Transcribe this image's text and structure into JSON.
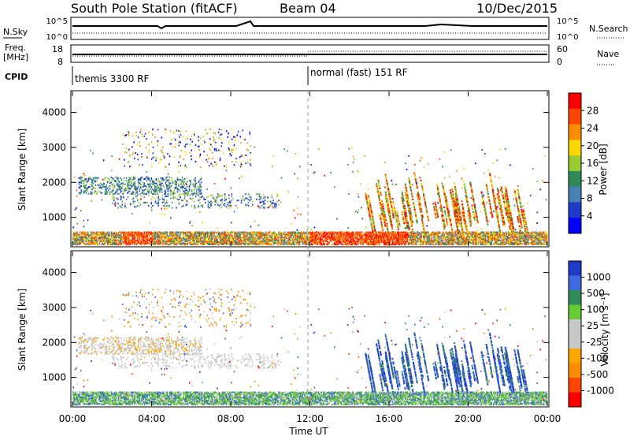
{
  "header": {
    "station": "South Pole Station (fitACF)",
    "beam": "Beam 04",
    "date": "10/Dec/2015"
  },
  "top_panels": {
    "left_labels": {
      "nsky": "N.Sky",
      "freq1": "Freq.",
      "freq2": "[MHz]",
      "cpid": "CPID"
    },
    "right_labels": {
      "nsearch": "N.Search",
      "nave": "Nave"
    },
    "nsky_ticks": [
      "10^5",
      "10^0"
    ],
    "nsearch_ticks": [
      "10^5",
      "10^0"
    ],
    "freq_ticks": [
      "18",
      "8"
    ],
    "nave_ticks": [
      "60",
      "0"
    ],
    "cpid_segments": [
      {
        "label": "themis 3300 RF",
        "start_hour": 0
      },
      {
        "label": "normal (fast) 151 RF",
        "start_hour": 12
      }
    ]
  },
  "axes": {
    "xlabel": "Time UT",
    "x_ticks": [
      "00:00",
      "04:00",
      "08:00",
      "12:00",
      "16:00",
      "20:00",
      "00:00"
    ],
    "y_ticks": [
      "1000",
      "2000",
      "3000",
      "4000"
    ],
    "ylabel": "Slant Range [km]"
  },
  "colorbars": {
    "power": {
      "title": "Power [dB]",
      "labels": [
        "28",
        "24",
        "20",
        "16",
        "12",
        "8",
        "4"
      ],
      "colors": [
        "#ff0000",
        "#ff4500",
        "#ff8c00",
        "#ffd700",
        "#9acd32",
        "#2e8b57",
        "#4682b4",
        "#1e3cc8",
        "#0000ff"
      ]
    },
    "velocity": {
      "title": "Velocity [m s⁻¹]",
      "labels": [
        "1000",
        "500",
        "100",
        "25",
        "-25",
        "-100",
        "-500",
        "-1000"
      ],
      "colors": [
        "#1e3cc8",
        "#4169e1",
        "#2e8b57",
        "#66cc33",
        "#c8c8c8",
        "#c8c8c8",
        "#ffa500",
        "#ff8c00",
        "#ff4500",
        "#ff0000"
      ]
    }
  },
  "chart_data": [
    {
      "type": "heatmap",
      "name": "power",
      "x_range_hours": [
        0,
        24
      ],
      "y_range_km": [
        180,
        4600
      ],
      "colorbar_label": "Power [dB]",
      "colorbar_range": [
        0,
        30
      ],
      "features": [
        {
          "time_hours": [
            0,
            24
          ],
          "range_km": [
            200,
            550
          ],
          "power_db": "8-28",
          "desc": "near-range echoes"
        },
        {
          "time_hours": [
            0,
            5
          ],
          "range_km": [
            1700,
            2100
          ],
          "power_db": "4-12"
        },
        {
          "time_hours": [
            12,
            17
          ],
          "range_km": [
            300,
            600
          ],
          "power_db": "20-28"
        },
        {
          "time_hours": [
            16,
            23
          ],
          "range_km": [
            500,
            1800
          ],
          "power_db": "12-28"
        }
      ]
    },
    {
      "type": "heatmap",
      "name": "velocity",
      "x_range_hours": [
        0,
        24
      ],
      "y_range_km": [
        180,
        4600
      ],
      "colorbar_label": "Velocity [m s-1]",
      "colorbar_range": [
        -1000,
        1000
      ],
      "features": [
        {
          "time_hours": [
            0,
            24
          ],
          "range_km": [
            200,
            450
          ],
          "velocity": "25-500"
        },
        {
          "time_hours": [
            0,
            8
          ],
          "range_km": [
            1300,
            2100
          ],
          "velocity": "-25 to 25"
        },
        {
          "time_hours": [
            16,
            23
          ],
          "range_km": [
            500,
            1800
          ],
          "velocity": "500-1000"
        }
      ]
    }
  ]
}
